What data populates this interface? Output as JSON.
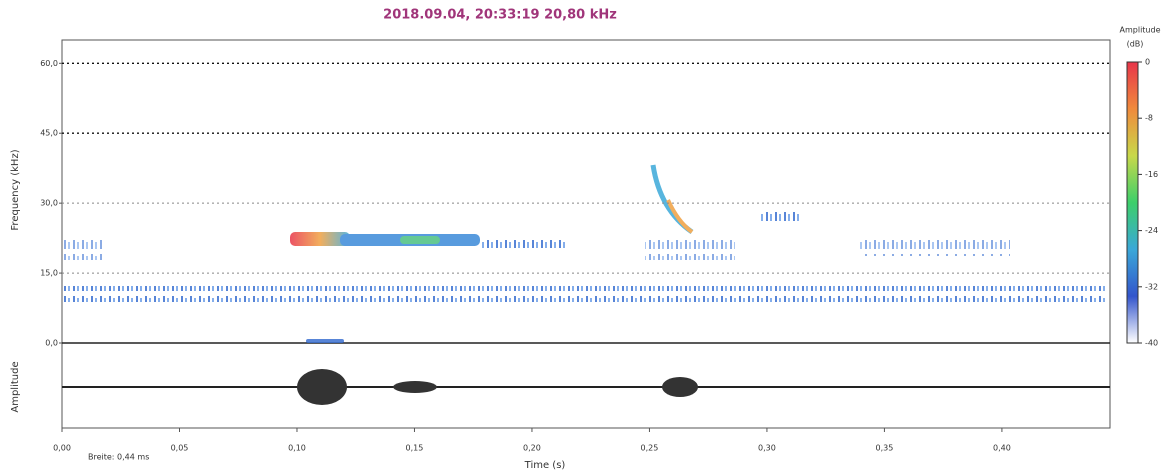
{
  "chart_data": {
    "type": "spectrogram",
    "title": "2018.09.04, 20:33:19 20,80 kHz",
    "x_label": "Time (s)",
    "y_label": "Frequency (kHz)",
    "waveform_label": "Amplitude",
    "note": "Breite: 0,44 ms",
    "xlim": [
      0,
      0.446
    ],
    "xticks": [
      {
        "value": 0,
        "label": "0,00"
      },
      {
        "value": 0.05,
        "label": "0,05"
      },
      {
        "value": 0.1,
        "label": "0,10"
      },
      {
        "value": 0.15,
        "label": "0,15"
      },
      {
        "value": 0.2,
        "label": "0,20"
      },
      {
        "value": 0.25,
        "label": "0,25"
      },
      {
        "value": 0.3,
        "label": "0,30"
      },
      {
        "value": 0.35,
        "label": "0,35"
      },
      {
        "value": 0.4,
        "label": "0,40"
      }
    ],
    "ylim": [
      0,
      65
    ],
    "yticks": [
      {
        "value": 0,
        "label": "0,0"
      },
      {
        "value": 15,
        "label": "15,0"
      },
      {
        "value": 30,
        "label": "30,0"
      },
      {
        "value": 45,
        "label": "45,0"
      },
      {
        "value": 60,
        "label": "60,0"
      }
    ],
    "grid": true,
    "colorbar": {
      "title": "Amplitude",
      "unit": "(dB)",
      "lim": [
        -40,
        0
      ],
      "ticks": [
        0,
        -8,
        -16,
        -24,
        -32,
        -40
      ],
      "colors": [
        "#e8354a",
        "#f08a3c",
        "#c8d84a",
        "#3ccf6a",
        "#3aa8d8",
        "#3355cc",
        "#ffffff"
      ]
    }
  }
}
